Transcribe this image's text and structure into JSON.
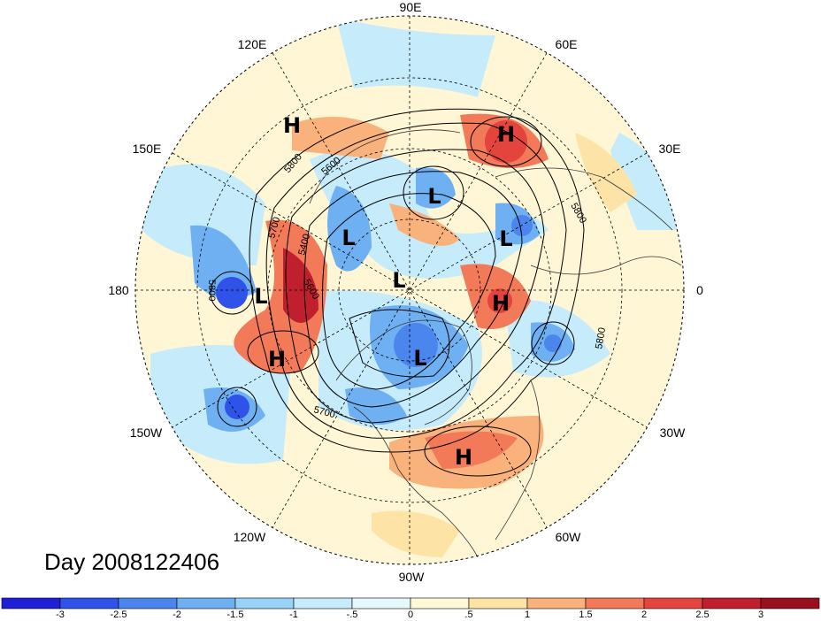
{
  "day_label": "Day 2008122406",
  "longitude_labels": [
    "90E",
    "60E",
    "30E",
    "0",
    "30W",
    "60W",
    "90W",
    "120W",
    "150W",
    "180",
    "150E",
    "120E"
  ],
  "centers": [
    {
      "type": "H",
      "lon": "~125E"
    },
    {
      "type": "H",
      "lon": "~60E"
    },
    {
      "type": "L",
      "lon": "~90E"
    },
    {
      "type": "L",
      "lon": "~45E"
    },
    {
      "type": "L",
      "lon": "~140E"
    },
    {
      "type": "L",
      "lon": "~180"
    },
    {
      "type": "L",
      "lon": "~polar"
    },
    {
      "type": "H",
      "lon": "~10W"
    },
    {
      "type": "H",
      "lon": "~160W"
    },
    {
      "type": "L",
      "lon": "~90W"
    },
    {
      "type": "H",
      "lon": "~70W"
    }
  ],
  "contour_labels": [
    "5800",
    "5600",
    "5700",
    "5400",
    "5600",
    "5800",
    "5800",
    "5700",
    "5800"
  ],
  "colorbar": {
    "tick_labels": [
      "-3",
      "-2.5",
      "-2",
      "-1.5",
      "-1",
      "-.5",
      "0",
      ".5",
      "1",
      "1.5",
      "2",
      "2.5",
      "3"
    ],
    "colors": [
      "#1f1fd6",
      "#2f53e8",
      "#4a86ee",
      "#6fb0f2",
      "#98d2f7",
      "#c6ecfb",
      "#e5f8fc",
      "#fff9d8",
      "#fde4a6",
      "#f9b27c",
      "#f27a58",
      "#e4443e",
      "#c0202e",
      "#98101e"
    ]
  }
}
